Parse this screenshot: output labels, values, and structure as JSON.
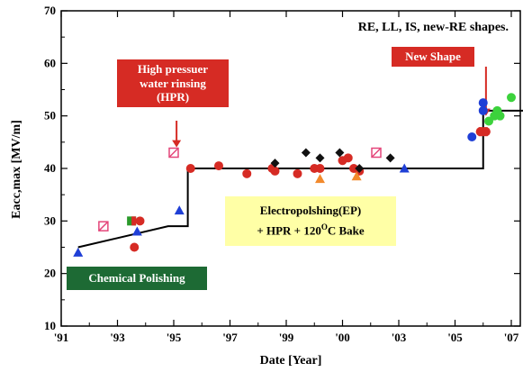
{
  "chart_data": {
    "type": "scatter",
    "title": "RE, LL, IS, new-RE shapes.",
    "xlabel": "Date [Year]",
    "ylabel": "Eacc,max [MV/m]",
    "ylim": [
      10,
      70
    ],
    "yticks": [
      10,
      20,
      30,
      40,
      50,
      60,
      70
    ],
    "xticks": [
      {
        "label": "'91",
        "t": 0
      },
      {
        "label": "'93",
        "t": 1
      },
      {
        "label": "'95",
        "t": 2
      },
      {
        "label": "'97",
        "t": 3
      },
      {
        "label": "'99",
        "t": 4
      },
      {
        "label": "'00",
        "t": 5
      },
      {
        "label": "'03",
        "t": 6
      },
      {
        "label": "'05",
        "t": 7
      },
      {
        "label": "'07",
        "t": 8
      }
    ],
    "trend_line": [
      [
        0.3,
        25
      ],
      [
        1.9,
        29
      ],
      [
        2.25,
        29
      ],
      [
        2.25,
        40
      ],
      [
        7.5,
        40
      ],
      [
        7.5,
        51
      ],
      [
        8.5,
        51
      ],
      [
        8.5,
        59
      ]
    ],
    "series": [
      {
        "marker": "triangle",
        "color": "#1f3fd6",
        "points": [
          [
            0.3,
            24
          ],
          [
            1.35,
            28
          ],
          [
            2.1,
            32
          ],
          [
            6.1,
            40
          ]
        ]
      },
      {
        "marker": "square-x",
        "color": "#e4467a",
        "points": [
          [
            0.75,
            29
          ],
          [
            2.0,
            43
          ],
          [
            5.6,
            43
          ]
        ]
      },
      {
        "marker": "split",
        "color": "#2a9a2a",
        "points": [
          [
            1.25,
            30
          ]
        ]
      },
      {
        "marker": "circle",
        "color": "#d62b24",
        "points": [
          [
            1.3,
            25
          ],
          [
            1.4,
            30
          ],
          [
            2.3,
            40
          ],
          [
            2.8,
            40.5
          ],
          [
            3.3,
            39
          ],
          [
            3.75,
            40
          ],
          [
            3.8,
            39.5
          ],
          [
            4.2,
            39
          ],
          [
            4.5,
            40
          ],
          [
            4.6,
            40
          ],
          [
            5.0,
            41.5
          ],
          [
            5.1,
            42
          ],
          [
            5.2,
            40
          ],
          [
            5.3,
            39.5
          ],
          [
            7.45,
            47
          ],
          [
            7.55,
            47
          ]
        ]
      },
      {
        "marker": "diamond",
        "color": "#111111",
        "points": [
          [
            3.8,
            41
          ],
          [
            4.35,
            43
          ],
          [
            4.6,
            42
          ],
          [
            4.95,
            43
          ],
          [
            5.3,
            40
          ],
          [
            5.85,
            42
          ]
        ]
      },
      {
        "marker": "triangle",
        "color": "#f28a2c",
        "points": [
          [
            4.6,
            38
          ],
          [
            5.25,
            38.5
          ]
        ]
      },
      {
        "marker": "circle",
        "color": "#1f3fd6",
        "points": [
          [
            7.3,
            46
          ],
          [
            7.5,
            51
          ],
          [
            7.5,
            52.5
          ]
        ]
      },
      {
        "marker": "circle",
        "color": "#3cd23c",
        "points": [
          [
            7.6,
            49
          ],
          [
            7.7,
            50
          ],
          [
            7.75,
            51
          ],
          [
            7.8,
            50
          ],
          [
            8.0,
            53.5
          ],
          [
            8.4,
            53
          ],
          [
            8.45,
            50
          ]
        ]
      },
      {
        "marker": "square",
        "color": "#d62b24",
        "points": [
          [
            7.5,
            47
          ]
        ]
      },
      {
        "marker": "square-open",
        "color": "#1f3fd6",
        "points": [
          [
            8.5,
            59
          ]
        ]
      }
    ],
    "annotations": [
      {
        "text_lines": [
          "High pressuer",
          "water rinsing",
          "(HPR)"
        ],
        "arrow_to": [
          2.05,
          44
        ]
      },
      {
        "text": "New Shape",
        "arrow_to": [
          7.55,
          50
        ]
      },
      {
        "text_lines": [
          "Electropolshing(EP)",
          "+ HPR + 120",
          "O",
          "C Bake"
        ]
      },
      {
        "text": "Chemical Polishing"
      }
    ]
  }
}
